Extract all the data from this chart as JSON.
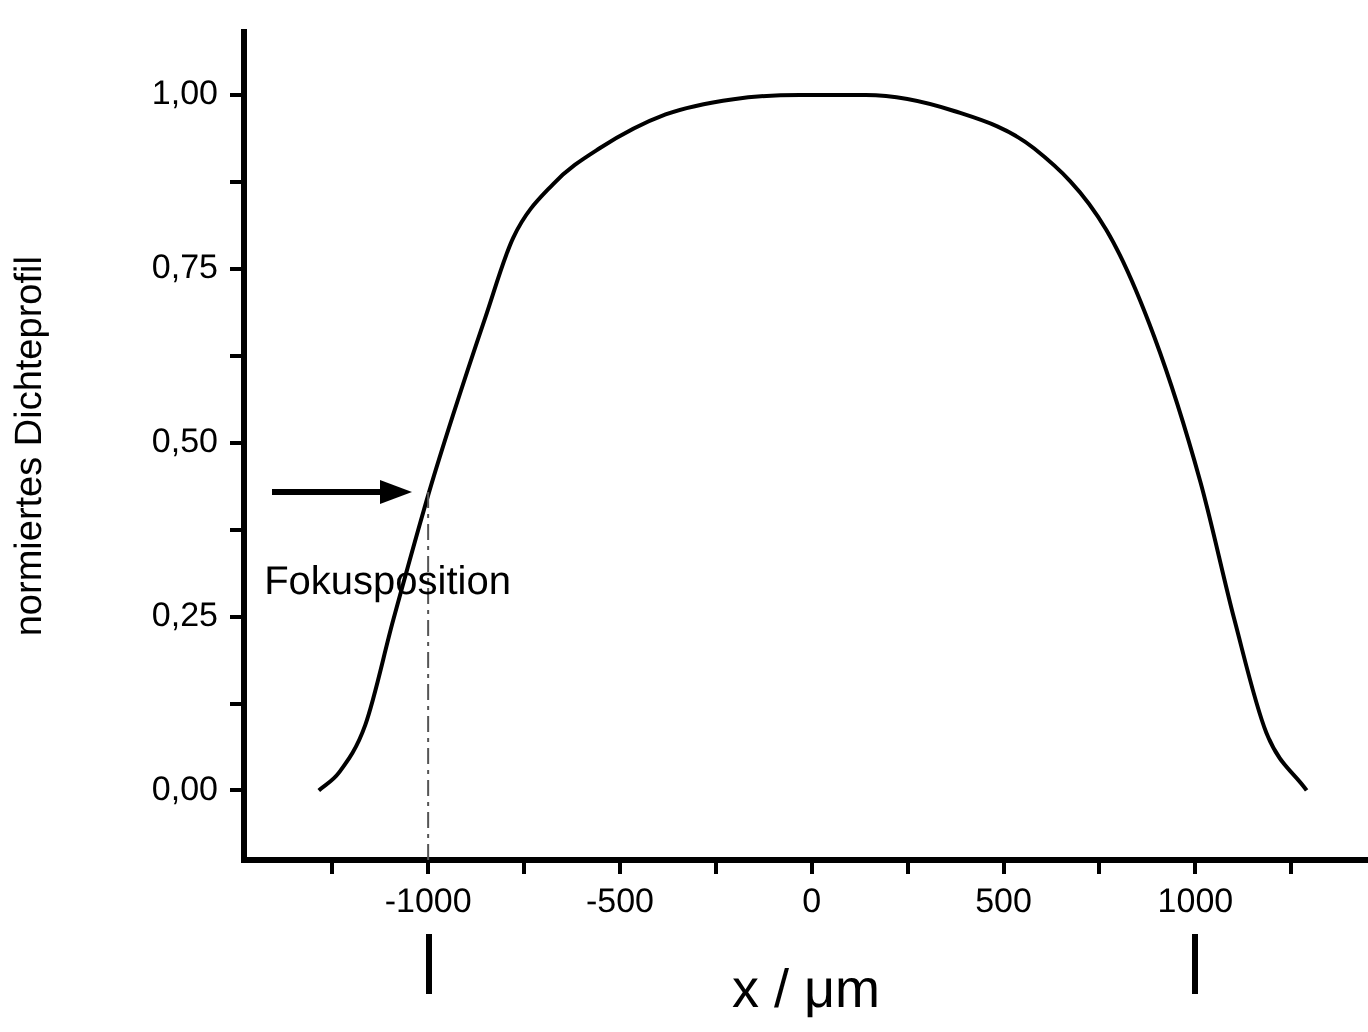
{
  "chart_data": {
    "type": "line",
    "xlabel": "x / μm",
    "ylabel": "normiertes Dichteprofil",
    "x": [
      -1285,
      -1232,
      -1164,
      -1091,
      -997,
      -935,
      -851,
      -778,
      -674,
      -554,
      -381,
      -204,
      -31,
      141,
      371,
      580,
      768,
      893,
      1013,
      1102,
      1185,
      1290
    ],
    "series": [
      {
        "color": "#000000",
        "values": [
          0,
          0.026,
          0.094,
          0.245,
          0.43,
          0.54,
          0.68,
          0.795,
          0.872,
          0.923,
          0.972,
          0.994,
          1.0,
          1.0,
          0.977,
          0.923,
          0.806,
          0.652,
          0.444,
          0.245,
          0.083,
          0
        ]
      }
    ],
    "xlim": [
      -1480,
      1450
    ],
    "xticks": [
      {
        "value": -1250,
        "label": null
      },
      -1000,
      {
        "value": -750,
        "label": null
      },
      -500,
      {
        "value": -250,
        "label": null
      },
      0,
      {
        "value": 250,
        "label": null
      },
      500,
      {
        "value": 750,
        "label": null
      },
      1000,
      {
        "value": 1250,
        "label": null
      }
    ],
    "ylim": [
      -0.1,
      1.09
    ],
    "yticks": [
      {
        "value": 0,
        "label": "0,00"
      },
      {
        "value": 0.125,
        "label": null
      },
      {
        "value": 0.25,
        "label": "0,25"
      },
      {
        "value": 0.375,
        "label": null
      },
      {
        "value": 0.5,
        "label": "0,50"
      },
      {
        "value": 0.625,
        "label": null
      },
      {
        "value": 0.75,
        "label": "0,75"
      },
      {
        "value": 0.875,
        "label": null
      },
      {
        "value": 1,
        "label": "1,00"
      }
    ],
    "annotations": [
      {
        "text": "Fokusposition",
        "x": -1000,
        "y": 0.43
      }
    ],
    "ref_lines": [
      {
        "axis": "x",
        "value": -1000,
        "line_style": "dashed"
      }
    ],
    "grid": false,
    "legend": false,
    "marker": "none",
    "line_style": "solid"
  }
}
